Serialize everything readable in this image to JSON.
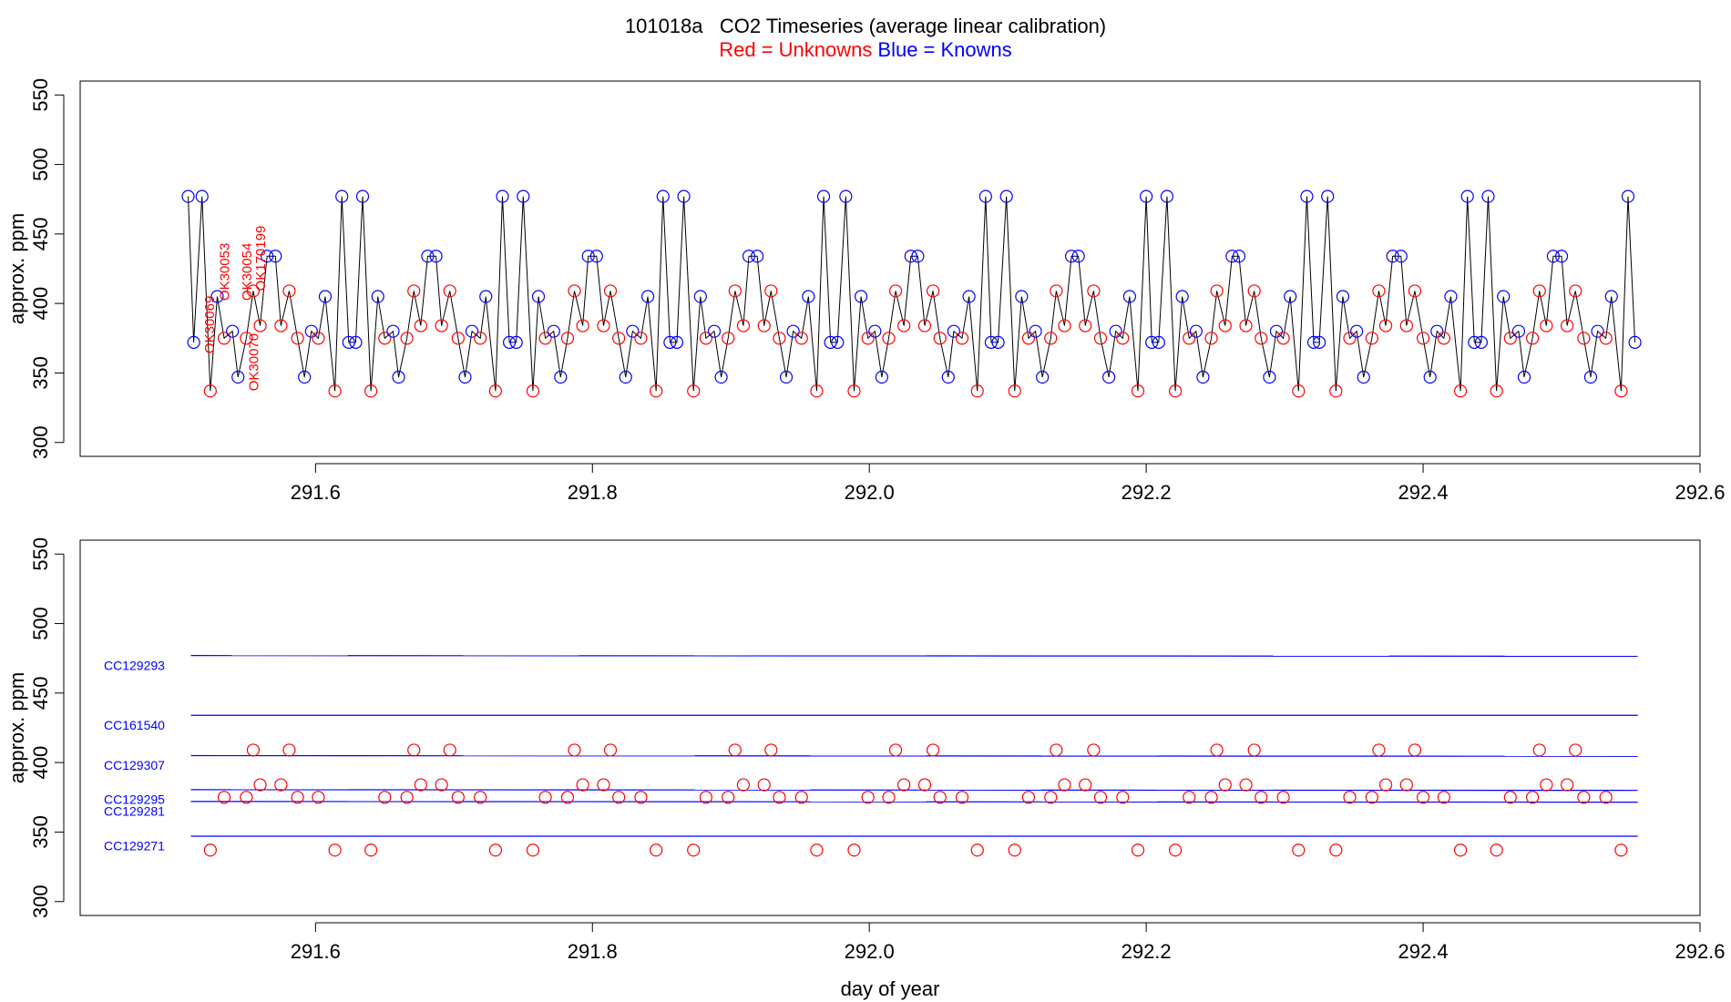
{
  "chart_data": [
    {
      "type": "line",
      "title": "101018a   CO2 Timeseries (average linear calibration)",
      "legend": [
        {
          "text": "Red = Unknowns",
          "color": "red"
        },
        {
          "text": "Blue = Knowns",
          "color": "blue"
        }
      ],
      "ylabel": "approx. ppm",
      "line_color": "black",
      "xlim": [
        291.43,
        292.6
      ],
      "ylim": [
        290,
        560
      ],
      "xticks": [
        291.6,
        291.8,
        {
          "value": 292,
          "label": "292.0"
        },
        292.2,
        292.4,
        292.6
      ],
      "yticks": [
        300,
        350,
        400,
        450,
        500,
        550
      ],
      "x": [
        291.508,
        291.512,
        291.518,
        291.524,
        291.529,
        291.534,
        291.54,
        291.544,
        291.55,
        291.555,
        291.56,
        291.565,
        291.571,
        291.575,
        291.581,
        291.587,
        291.592,
        291.597,
        291.602,
        291.607,
        291.614,
        291.619,
        291.624,
        291.629,
        291.634,
        291.64,
        291.645,
        291.65,
        291.656,
        291.66,
        291.666,
        291.671,
        291.676,
        291.681,
        291.687,
        291.691,
        291.697,
        291.703,
        291.708,
        291.713,
        291.719,
        291.723,
        291.73,
        291.735,
        291.74,
        291.745,
        291.75,
        291.757,
        291.761,
        291.766,
        291.772,
        291.777,
        291.782,
        291.787,
        291.793,
        291.797,
        291.803,
        291.808,
        291.813,
        291.819,
        291.824,
        291.829,
        291.835,
        291.84,
        291.846,
        291.851,
        291.856,
        291.861,
        291.866,
        291.873,
        291.878,
        291.882,
        291.888,
        291.893,
        291.898,
        291.903,
        291.909,
        291.913,
        291.919,
        291.924,
        291.929,
        291.935,
        291.94,
        291.945,
        291.951,
        291.956,
        291.962,
        291.967,
        291.972,
        291.977,
        291.983,
        291.989,
        291.994,
        291.999,
        292.004,
        292.009,
        292.014,
        292.019,
        292.025,
        292.03,
        292.035,
        292.04,
        292.046,
        292.051,
        292.057,
        292.061,
        292.067,
        292.072,
        292.078,
        292.084,
        292.088,
        292.093,
        292.099,
        292.105,
        292.11,
        292.115,
        292.12,
        292.125,
        292.131,
        292.135,
        292.141,
        292.146,
        292.151,
        292.156,
        292.162,
        292.167,
        292.173,
        292.178,
        292.183,
        292.188,
        292.194,
        292.2,
        292.204,
        292.209,
        292.215,
        292.221,
        292.226,
        292.231,
        292.236,
        292.241,
        292.247,
        292.251,
        292.257,
        292.262,
        292.267,
        292.272,
        292.278,
        292.283,
        292.289,
        292.294,
        292.299,
        292.304,
        292.31,
        292.316,
        292.321,
        292.325,
        292.331,
        292.337,
        292.342,
        292.347,
        292.352,
        292.357,
        292.363,
        292.368,
        292.373,
        292.378,
        292.384,
        292.388,
        292.394,
        292.4,
        292.405,
        292.41,
        292.415,
        292.42,
        292.427,
        292.432,
        292.437,
        292.442,
        292.447,
        292.453,
        292.458,
        292.463,
        292.469,
        292.473,
        292.479,
        292.484,
        292.489,
        292.494,
        292.5,
        292.504,
        292.51,
        292.516,
        292.521,
        292.526,
        292.532,
        292.536,
        292.543,
        292.548,
        292.553
      ],
      "values": [
        477,
        372,
        477,
        337,
        405,
        375,
        380,
        347,
        375,
        409,
        384,
        434,
        434,
        384,
        409,
        375,
        347,
        380,
        375,
        405,
        337,
        477,
        372,
        372,
        477,
        337,
        405,
        375,
        380,
        347,
        375,
        409,
        384,
        434,
        434,
        384,
        409,
        375,
        347,
        380,
        375,
        405,
        337,
        477,
        372,
        372,
        477,
        337,
        405,
        375,
        380,
        347,
        375,
        409,
        384,
        434,
        434,
        384,
        409,
        375,
        347,
        380,
        375,
        405,
        337,
        477,
        372,
        372,
        477,
        337,
        405,
        375,
        380,
        347,
        375,
        409,
        384,
        434,
        434,
        384,
        409,
        375,
        347,
        380,
        375,
        405,
        337,
        477,
        372,
        372,
        477,
        337,
        405,
        375,
        380,
        347,
        375,
        409,
        384,
        434,
        434,
        384,
        409,
        375,
        347,
        380,
        375,
        405,
        337,
        477,
        372,
        372,
        477,
        337,
        405,
        375,
        380,
        347,
        375,
        409,
        384,
        434,
        434,
        384,
        409,
        375,
        347,
        380,
        375,
        405,
        337,
        477,
        372,
        372,
        477,
        337,
        405,
        375,
        380,
        347,
        375,
        409,
        384,
        434,
        434,
        384,
        409,
        375,
        347,
        380,
        375,
        405,
        337,
        477,
        372,
        372,
        477,
        337,
        405,
        375,
        380,
        347,
        375,
        409,
        384,
        434,
        434,
        384,
        409,
        375,
        347,
        380,
        375,
        405,
        337,
        477,
        372,
        372,
        477,
        337,
        405,
        375,
        380,
        347,
        375,
        409,
        384,
        434,
        434,
        384,
        409,
        375,
        347,
        380,
        375,
        405,
        337,
        477,
        372
      ],
      "point_colors": [
        "blue",
        "blue",
        "blue",
        "red",
        "blue",
        "red",
        "blue",
        "blue",
        "red",
        "red",
        "red",
        "blue",
        "blue",
        "red",
        "red",
        "red",
        "blue",
        "blue",
        "red",
        "blue",
        "red",
        "blue",
        "blue",
        "blue",
        "blue",
        "red",
        "blue",
        "red",
        "blue",
        "blue",
        "red",
        "red",
        "red",
        "blue",
        "blue",
        "red",
        "red",
        "red",
        "blue",
        "blue",
        "red",
        "blue",
        "red",
        "blue",
        "blue",
        "blue",
        "blue",
        "red",
        "blue",
        "red",
        "blue",
        "blue",
        "red",
        "red",
        "red",
        "blue",
        "blue",
        "red",
        "red",
        "red",
        "blue",
        "blue",
        "red",
        "blue",
        "red",
        "blue",
        "blue",
        "blue",
        "blue",
        "red",
        "blue",
        "red",
        "blue",
        "blue",
        "red",
        "red",
        "red",
        "blue",
        "blue",
        "red",
        "red",
        "red",
        "blue",
        "blue",
        "red",
        "blue",
        "red",
        "blue",
        "blue",
        "blue",
        "blue",
        "red",
        "blue",
        "red",
        "blue",
        "blue",
        "red",
        "red",
        "red",
        "blue",
        "blue",
        "red",
        "red",
        "red",
        "blue",
        "blue",
        "red",
        "blue",
        "red",
        "blue",
        "blue",
        "blue",
        "blue",
        "red",
        "blue",
        "red",
        "blue",
        "blue",
        "red",
        "red",
        "red",
        "blue",
        "blue",
        "red",
        "red",
        "red",
        "blue",
        "blue",
        "red",
        "blue",
        "red",
        "blue",
        "blue",
        "blue",
        "blue",
        "red",
        "blue",
        "red",
        "blue",
        "blue",
        "red",
        "red",
        "red",
        "blue",
        "blue",
        "red",
        "red",
        "red",
        "blue",
        "blue",
        "red",
        "blue",
        "red",
        "blue",
        "blue",
        "blue",
        "blue",
        "red",
        "blue",
        "red",
        "blue",
        "blue",
        "red",
        "red",
        "red",
        "blue",
        "blue",
        "red",
        "red",
        "red",
        "blue",
        "blue",
        "red",
        "blue",
        "red",
        "blue",
        "blue",
        "blue",
        "blue",
        "red",
        "blue",
        "red",
        "blue",
        "blue",
        "red",
        "red",
        "red",
        "blue",
        "blue",
        "red",
        "red",
        "red",
        "blue",
        "blue",
        "red",
        "blue",
        "red",
        "blue",
        "blue"
      ],
      "annotation_color": "red",
      "annotations": [
        {
          "text": "OK30069",
          "x": 291.524,
          "y": 364
        },
        {
          "text": "OK30053",
          "x": 291.535,
          "y": 402
        },
        {
          "text": "OK30070",
          "x": 291.556,
          "y": 337
        },
        {
          "text": "OK30054",
          "x": 291.551,
          "y": 402
        },
        {
          "text": "OK170199",
          "x": 291.561,
          "y": 409
        }
      ]
    },
    {
      "type": "scatter",
      "ylabel": "approx. ppm",
      "xlabel": "day of year",
      "color": "red",
      "xlim": [
        291.43,
        292.6
      ],
      "ylim": [
        290,
        560
      ],
      "xticks": [
        291.6,
        291.8,
        {
          "value": 292,
          "label": "292.0"
        },
        292.2,
        292.4,
        292.6
      ],
      "yticks": [
        300,
        350,
        400,
        450,
        500,
        550
      ],
      "x": [
        291.524,
        291.534,
        291.55,
        291.555,
        291.56,
        291.575,
        291.581,
        291.587,
        291.602,
        291.614,
        291.64,
        291.65,
        291.666,
        291.671,
        291.676,
        291.691,
        291.697,
        291.703,
        291.719,
        291.73,
        291.757,
        291.766,
        291.782,
        291.787,
        291.793,
        291.808,
        291.813,
        291.819,
        291.835,
        291.846,
        291.873,
        291.882,
        291.898,
        291.903,
        291.909,
        291.924,
        291.929,
        291.935,
        291.951,
        291.962,
        291.989,
        291.999,
        292.014,
        292.019,
        292.025,
        292.04,
        292.046,
        292.051,
        292.067,
        292.078,
        292.105,
        292.115,
        292.131,
        292.135,
        292.141,
        292.156,
        292.162,
        292.167,
        292.183,
        292.194,
        292.221,
        292.231,
        292.247,
        292.251,
        292.257,
        292.272,
        292.278,
        292.283,
        292.299,
        292.31,
        292.337,
        292.347,
        292.363,
        292.368,
        292.373,
        292.388,
        292.394,
        292.4,
        292.415,
        292.427,
        292.453,
        292.463,
        292.479,
        292.484,
        292.489,
        292.504,
        292.51,
        292.516,
        292.532,
        292.543
      ],
      "values": [
        337,
        375,
        375,
        409,
        384,
        384,
        409,
        375,
        375,
        337,
        337,
        375,
        375,
        409,
        384,
        384,
        409,
        375,
        375,
        337,
        337,
        375,
        375,
        409,
        384,
        384,
        409,
        375,
        375,
        337,
        337,
        375,
        375,
        409,
        384,
        384,
        409,
        375,
        375,
        337,
        337,
        375,
        375,
        409,
        384,
        384,
        409,
        375,
        375,
        337,
        337,
        375,
        375,
        409,
        384,
        384,
        409,
        375,
        375,
        337,
        337,
        375,
        375,
        409,
        384,
        384,
        409,
        375,
        375,
        337,
        337,
        375,
        375,
        409,
        384,
        384,
        409,
        375,
        375,
        337,
        337,
        375,
        375,
        409,
        384,
        384,
        409,
        375,
        375,
        337
      ],
      "series": [
        {
          "name": "CC129293",
          "color": "blue",
          "x": [
            291.51,
            292.555
          ],
          "values": [
            477,
            476.5
          ]
        },
        {
          "name": "CC161540",
          "color": "blue",
          "x": [
            291.51,
            292.555
          ],
          "values": [
            434,
            434
          ]
        },
        {
          "name": "CC129307",
          "color": "blue",
          "x": [
            291.51,
            292.555
          ],
          "values": [
            405,
            404.5
          ]
        },
        {
          "name": "CC129295",
          "color": "blue",
          "x": [
            291.51,
            292.555
          ],
          "values": [
            380.5,
            380
          ]
        },
        {
          "name": "CC129281",
          "color": "blue",
          "x": [
            291.51,
            292.555
          ],
          "values": [
            372,
            371.5
          ]
        },
        {
          "name": "CC129271",
          "color": "blue",
          "x": [
            291.51,
            292.555
          ],
          "values": [
            347,
            347
          ]
        }
      ]
    }
  ]
}
